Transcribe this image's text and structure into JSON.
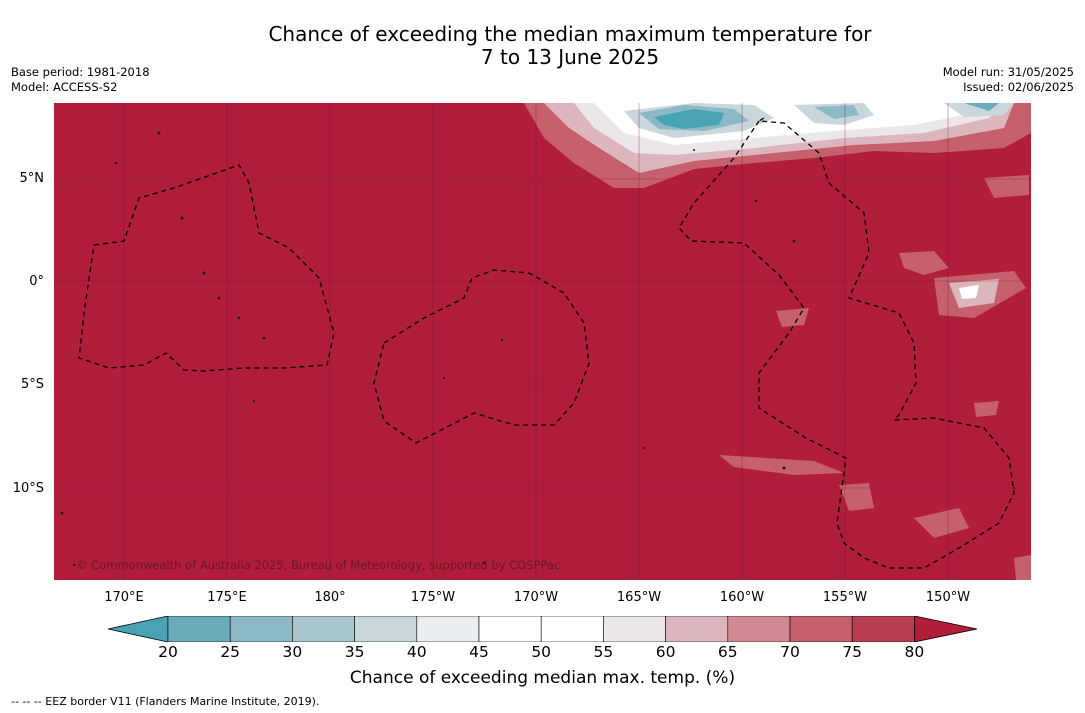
{
  "title": {
    "line1": "Chance of exceeding the median maximum temperature for",
    "line2": "7 to 13 June 2025"
  },
  "meta_left": {
    "base_period": "Base period: 1981-2018",
    "model": "Model: ACCESS-S2"
  },
  "meta_right": {
    "model_run": "Model run: 31/05/2025",
    "issued": "Issued: 02/06/2025"
  },
  "copyright": "© Commonwealth of Australia 2025, Bureau of Meteorology, supported by COSPPac",
  "lat_labels": [
    "5°N",
    "0°",
    "5°S",
    "10°S"
  ],
  "lon_labels": [
    "170°E",
    "175°E",
    "180°",
    "175°W",
    "170°W",
    "165°W",
    "160°W",
    "155°W",
    "150°W"
  ],
  "colorbar": {
    "ticks": [
      "20",
      "25",
      "30",
      "35",
      "40",
      "45",
      "50",
      "55",
      "60",
      "65",
      "70",
      "75",
      "80"
    ],
    "colors": [
      "#4aa3b3",
      "#6aacba",
      "#8bbac6",
      "#a9c6cc",
      "#c9d6db",
      "#e8eef1",
      "#ffffff",
      "#ffffff",
      "#ebe6e8",
      "#dcb6bc",
      "#d18a93",
      "#c5606c",
      "#b83f52",
      "#b11e3a"
    ],
    "label": "Chance of exceeding median max. temp. (%)"
  },
  "footer": "--  --  -- EEZ border V11 (Flanders Marine Institute, 2019).",
  "map_background_color": "#b11e3a"
}
